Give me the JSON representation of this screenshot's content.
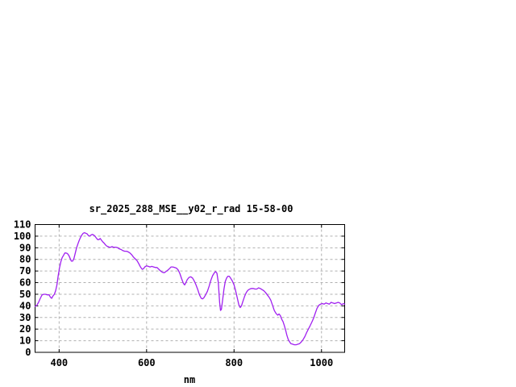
{
  "window": {
    "background": "#ffffff"
  },
  "chart_data": {
    "type": "line",
    "title": "sr_2025_288_MSE__y02_r_rad 15-58-00",
    "xlabel": "nm",
    "ylabel": "",
    "xlim": [
      345,
      1053
    ],
    "ylim": [
      0,
      110
    ],
    "xticks": [
      400,
      600,
      800,
      1000
    ],
    "yticks": [
      0,
      10,
      20,
      30,
      40,
      50,
      60,
      70,
      80,
      90,
      100,
      110
    ],
    "grid": true,
    "legend": "none",
    "colors": {
      "line": "#a020f0",
      "grid": "#b0b0b0",
      "axis": "#000000",
      "text": "#000000",
      "background": "#ffffff"
    },
    "series": [
      {
        "name": "sr_2025_288_MSE__y02_r_rad",
        "points": [
          [
            345,
            39.5
          ],
          [
            349,
            40.5
          ],
          [
            353,
            43
          ],
          [
            357,
            46.5
          ],
          [
            361,
            49.5
          ],
          [
            365,
            50
          ],
          [
            369,
            50
          ],
          [
            373,
            49.5
          ],
          [
            377,
            49.5
          ],
          [
            380,
            47.5
          ],
          [
            383,
            46.5
          ],
          [
            386,
            48.5
          ],
          [
            389,
            50
          ],
          [
            392,
            53
          ],
          [
            395,
            58
          ],
          [
            398,
            66
          ],
          [
            401,
            73
          ],
          [
            404,
            78
          ],
          [
            407,
            81.5
          ],
          [
            410,
            83.5
          ],
          [
            413,
            85.5
          ],
          [
            416,
            85.5
          ],
          [
            419,
            85
          ],
          [
            422,
            83.5
          ],
          [
            425,
            81
          ],
          [
            428,
            78.5
          ],
          [
            431,
            78.5
          ],
          [
            434,
            81
          ],
          [
            437,
            85.5
          ],
          [
            440,
            90
          ],
          [
            443,
            93.5
          ],
          [
            446,
            96.5
          ],
          [
            449,
            99
          ],
          [
            452,
            101
          ],
          [
            455,
            102.5
          ],
          [
            458,
            103
          ],
          [
            461,
            102.5
          ],
          [
            464,
            102
          ],
          [
            467,
            100.5
          ],
          [
            470,
            100
          ],
          [
            473,
            101
          ],
          [
            476,
            101.5
          ],
          [
            479,
            101
          ],
          [
            482,
            100
          ],
          [
            485,
            98.5
          ],
          [
            488,
            97
          ],
          [
            491,
            97
          ],
          [
            494,
            98
          ],
          [
            497,
            96.5
          ],
          [
            500,
            95
          ],
          [
            503,
            94
          ],
          [
            506,
            92.5
          ],
          [
            509,
            91.5
          ],
          [
            512,
            91
          ],
          [
            515,
            90.5
          ],
          [
            518,
            90.5
          ],
          [
            521,
            91
          ],
          [
            524,
            90.5
          ],
          [
            527,
            90.5
          ],
          [
            530,
            90.5
          ],
          [
            534,
            90
          ],
          [
            538,
            89
          ],
          [
            542,
            88.5
          ],
          [
            546,
            87.5
          ],
          [
            550,
            87
          ],
          [
            554,
            87
          ],
          [
            558,
            86.5
          ],
          [
            562,
            85.5
          ],
          [
            566,
            84
          ],
          [
            570,
            82
          ],
          [
            574,
            80.5
          ],
          [
            578,
            79
          ],
          [
            582,
            76.5
          ],
          [
            586,
            73.5
          ],
          [
            590,
            71.5
          ],
          [
            593,
            72
          ],
          [
            596,
            73.5
          ],
          [
            600,
            74.5
          ],
          [
            604,
            74
          ],
          [
            608,
            73.5
          ],
          [
            612,
            74
          ],
          [
            616,
            73.5
          ],
          [
            620,
            73
          ],
          [
            624,
            73
          ],
          [
            628,
            71.5
          ],
          [
            632,
            70
          ],
          [
            636,
            69
          ],
          [
            640,
            68.5
          ],
          [
            644,
            69.5
          ],
          [
            648,
            70.5
          ],
          [
            652,
            72
          ],
          [
            656,
            73.5
          ],
          [
            660,
            73.5
          ],
          [
            664,
            73
          ],
          [
            668,
            72.5
          ],
          [
            672,
            71
          ],
          [
            676,
            68
          ],
          [
            680,
            63.5
          ],
          [
            684,
            59.5
          ],
          [
            687,
            58
          ],
          [
            690,
            60
          ],
          [
            693,
            62.5
          ],
          [
            697,
            64.5
          ],
          [
            701,
            65
          ],
          [
            705,
            64
          ],
          [
            709,
            61.5
          ],
          [
            713,
            58
          ],
          [
            717,
            54
          ],
          [
            721,
            49.5
          ],
          [
            725,
            46.5
          ],
          [
            728,
            46
          ],
          [
            731,
            47
          ],
          [
            735,
            49.5
          ],
          [
            739,
            52.5
          ],
          [
            743,
            57
          ],
          [
            747,
            62
          ],
          [
            751,
            66
          ],
          [
            755,
            68.5
          ],
          [
            758,
            69.5
          ],
          [
            761,
            68
          ],
          [
            764,
            60
          ],
          [
            767,
            43
          ],
          [
            769,
            36
          ],
          [
            771,
            37
          ],
          [
            774,
            45.5
          ],
          [
            777,
            54.5
          ],
          [
            780,
            61
          ],
          [
            783,
            64
          ],
          [
            786,
            65.5
          ],
          [
            789,
            65.5
          ],
          [
            792,
            64
          ],
          [
            796,
            61.5
          ],
          [
            800,
            58
          ],
          [
            803,
            54
          ],
          [
            807,
            47.5
          ],
          [
            811,
            41
          ],
          [
            814,
            38.5
          ],
          [
            817,
            40
          ],
          [
            820,
            43.5
          ],
          [
            824,
            48
          ],
          [
            828,
            51.5
          ],
          [
            832,
            53.5
          ],
          [
            836,
            54.5
          ],
          [
            840,
            55
          ],
          [
            844,
            55
          ],
          [
            848,
            54.5
          ],
          [
            852,
            54.5
          ],
          [
            856,
            55.5
          ],
          [
            860,
            55
          ],
          [
            864,
            54
          ],
          [
            868,
            53
          ],
          [
            872,
            51.5
          ],
          [
            876,
            49.5
          ],
          [
            880,
            47.5
          ],
          [
            884,
            45
          ],
          [
            888,
            40.5
          ],
          [
            892,
            36
          ],
          [
            896,
            33.5
          ],
          [
            900,
            32
          ],
          [
            903,
            33
          ],
          [
            906,
            31.5
          ],
          [
            909,
            28.5
          ],
          [
            912,
            26.5
          ],
          [
            915,
            23
          ],
          [
            918,
            19
          ],
          [
            921,
            14.5
          ],
          [
            924,
            11
          ],
          [
            927,
            9
          ],
          [
            930,
            7.5
          ],
          [
            934,
            7
          ],
          [
            938,
            6.5
          ],
          [
            942,
            6.5
          ],
          [
            946,
            7
          ],
          [
            950,
            7.5
          ],
          [
            954,
            9
          ],
          [
            958,
            11
          ],
          [
            962,
            13.5
          ],
          [
            966,
            17
          ],
          [
            970,
            20
          ],
          [
            974,
            23
          ],
          [
            978,
            26
          ],
          [
            982,
            29.5
          ],
          [
            986,
            34
          ],
          [
            990,
            38
          ],
          [
            994,
            40.5
          ],
          [
            998,
            41.5
          ],
          [
            1002,
            42
          ],
          [
            1006,
            41.5
          ],
          [
            1010,
            42.5
          ],
          [
            1014,
            42
          ],
          [
            1018,
            41.5
          ],
          [
            1022,
            43
          ],
          [
            1026,
            42.5
          ],
          [
            1030,
            42
          ],
          [
            1034,
            42.5
          ],
          [
            1038,
            43
          ],
          [
            1042,
            42.5
          ],
          [
            1046,
            41
          ],
          [
            1050,
            42
          ],
          [
            1053,
            41.5
          ]
        ]
      }
    ]
  }
}
